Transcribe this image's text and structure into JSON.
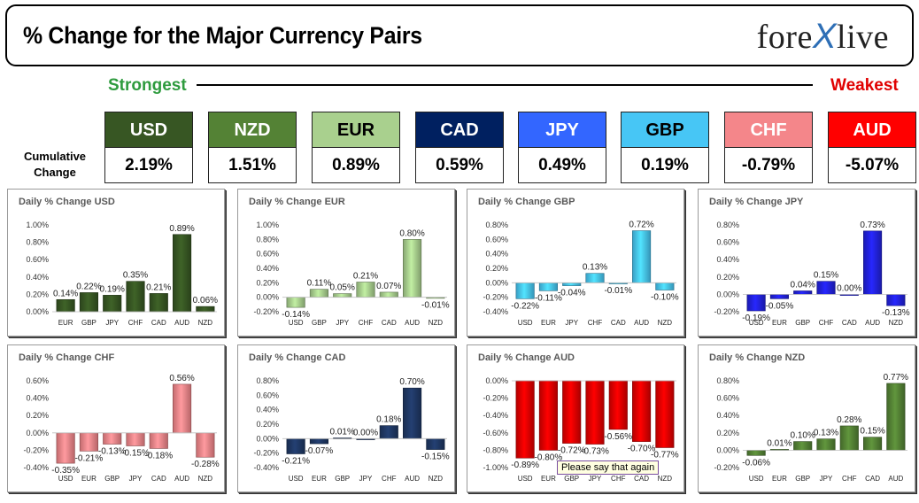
{
  "header": {
    "title": "% Change for the Major Currency Pairs",
    "logo_left": "fore",
    "logo_x": "X",
    "logo_right": "live"
  },
  "strength": {
    "strongest": "Strongest",
    "weakest": "Weakest",
    "cumulative_label": "Cumulative Change"
  },
  "currencies": [
    {
      "code": "USD",
      "value": "2.19%",
      "bg": "#375623",
      "fg": "#ffffff"
    },
    {
      "code": "NZD",
      "value": "1.51%",
      "bg": "#548235",
      "fg": "#ffffff"
    },
    {
      "code": "EUR",
      "value": "0.89%",
      "bg": "#a9d08e",
      "fg": "#000000"
    },
    {
      "code": "CAD",
      "value": "0.59%",
      "bg": "#002060",
      "fg": "#ffffff"
    },
    {
      "code": "JPY",
      "value": "0.49%",
      "bg": "#3366ff",
      "fg": "#ffffff"
    },
    {
      "code": "GBP",
      "value": "0.19%",
      "bg": "#47c6f5",
      "fg": "#000000"
    },
    {
      "code": "CHF",
      "value": "-0.79%",
      "bg": "#f4868a",
      "fg": "#ffffff"
    },
    {
      "code": "AUD",
      "value": "-5.07%",
      "bg": "#ff0000",
      "fg": "#ffffff"
    }
  ],
  "tooltip": "Please say that again",
  "chart_data": [
    {
      "type": "bar",
      "title": "Daily % Change USD",
      "color": "#375623",
      "categories": [
        "EUR",
        "GBP",
        "JPY",
        "CHF",
        "CAD",
        "AUD",
        "NZD"
      ],
      "values": [
        0.14,
        0.22,
        0.19,
        0.35,
        0.21,
        0.89,
        0.06
      ],
      "labels": [
        "0.14%",
        "0.22%",
        "0.19%",
        "0.35%",
        "0.21%",
        "0.89%",
        "0.06%"
      ],
      "ylim": [
        0,
        1.0
      ],
      "yticks": [
        0,
        0.2,
        0.4,
        0.6,
        0.8,
        1.0
      ],
      "ytick_labels": [
        "0.00%",
        "0.20%",
        "0.40%",
        "0.60%",
        "0.80%",
        "1.00%"
      ]
    },
    {
      "type": "bar",
      "title": "Daily % Change EUR",
      "color": "#a9d08e",
      "categories": [
        "USD",
        "GBP",
        "JPY",
        "CHF",
        "CAD",
        "AUD",
        "NZD"
      ],
      "values": [
        -0.14,
        0.11,
        0.05,
        0.21,
        0.07,
        0.8,
        -0.01
      ],
      "labels": [
        "-0.14%",
        "0.11%",
        "0.05%",
        "0.21%",
        "0.07%",
        "0.80%",
        "-0.01%"
      ],
      "ylim": [
        -0.2,
        1.0
      ],
      "yticks": [
        -0.2,
        0,
        0.2,
        0.4,
        0.6,
        0.8,
        1.0
      ],
      "ytick_labels": [
        "-0.20%",
        "0.00%",
        "0.20%",
        "0.40%",
        "0.60%",
        "0.80%",
        "1.00%"
      ]
    },
    {
      "type": "bar",
      "title": "Daily % Change GBP",
      "color": "#47c6f5",
      "categories": [
        "USD",
        "EUR",
        "JPY",
        "CHF",
        "CAD",
        "AUD",
        "NZD"
      ],
      "values": [
        -0.22,
        -0.11,
        -0.04,
        0.13,
        -0.01,
        0.72,
        -0.1
      ],
      "labels": [
        "-0.22%",
        "-0.11%",
        "-0.04%",
        "0.13%",
        "-0.01%",
        "0.72%",
        "-0.10%"
      ],
      "ylim": [
        -0.4,
        0.8
      ],
      "yticks": [
        -0.4,
        -0.2,
        0,
        0.2,
        0.4,
        0.6,
        0.8
      ],
      "ytick_labels": [
        "-0.40%",
        "-0.20%",
        "0.00%",
        "0.20%",
        "0.40%",
        "0.60%",
        "0.80%"
      ]
    },
    {
      "type": "bar",
      "title": "Daily % Change JPY",
      "color": "#2222dd",
      "categories": [
        "USD",
        "EUR",
        "GBP",
        "CHF",
        "CAD",
        "AUD",
        "NZD"
      ],
      "values": [
        -0.19,
        -0.05,
        0.04,
        0.15,
        0.0,
        0.73,
        -0.13
      ],
      "labels": [
        "-0.19%",
        "-0.05%",
        "0.04%",
        "0.15%",
        "0.00%",
        "0.73%",
        "-0.13%"
      ],
      "ylim": [
        -0.2,
        0.8
      ],
      "yticks": [
        -0.2,
        0,
        0.2,
        0.4,
        0.6,
        0.8
      ],
      "ytick_labels": [
        "-0.20%",
        "0.00%",
        "0.20%",
        "0.40%",
        "0.60%",
        "0.80%"
      ]
    },
    {
      "type": "bar",
      "title": "Daily % Change CHF",
      "color": "#f4868a",
      "categories": [
        "USD",
        "EUR",
        "GBP",
        "JPY",
        "CAD",
        "AUD",
        "NZD"
      ],
      "values": [
        -0.35,
        -0.21,
        -0.13,
        -0.15,
        -0.18,
        0.56,
        -0.28
      ],
      "labels": [
        "-0.35%",
        "-0.21%",
        "-0.13%",
        "-0.15%",
        "-0.18%",
        "0.56%",
        "-0.28%"
      ],
      "ylim": [
        -0.4,
        0.6
      ],
      "yticks": [
        -0.4,
        -0.2,
        0,
        0.2,
        0.4,
        0.6
      ],
      "ytick_labels": [
        "-0.40%",
        "-0.20%",
        "0.00%",
        "0.20%",
        "0.40%",
        "0.60%"
      ]
    },
    {
      "type": "bar",
      "title": "Daily % Change CAD",
      "color": "#1f3864",
      "categories": [
        "USD",
        "EUR",
        "GBP",
        "JPY",
        "CHF",
        "AUD",
        "NZD"
      ],
      "values": [
        -0.21,
        -0.07,
        0.01,
        0.0,
        0.18,
        0.7,
        -0.15
      ],
      "labels": [
        "-0.21%",
        "-0.07%",
        "0.01%",
        "0.00%",
        "0.18%",
        "0.70%",
        "-0.15%"
      ],
      "ylim": [
        -0.4,
        0.8
      ],
      "yticks": [
        -0.4,
        -0.2,
        0,
        0.2,
        0.4,
        0.6,
        0.8
      ],
      "ytick_labels": [
        "-0.40%",
        "-0.20%",
        "0.00%",
        "0.20%",
        "0.40%",
        "0.60%",
        "0.80%"
      ]
    },
    {
      "type": "bar",
      "title": "Daily % Change AUD",
      "color": "#e00000",
      "categories": [
        "USD",
        "EUR",
        "GBP",
        "JPY",
        "CHF",
        "CAD",
        "NZD"
      ],
      "values": [
        -0.89,
        -0.8,
        -0.72,
        -0.73,
        -0.56,
        -0.7,
        -0.77
      ],
      "labels": [
        "-0.89%",
        "-0.80%",
        "-0.72%",
        "-0.73%",
        "-0.56%",
        "-0.70%",
        "-0.77%"
      ],
      "ylim": [
        -1.0,
        0
      ],
      "yticks": [
        -1.0,
        -0.8,
        -0.6,
        -0.4,
        -0.2,
        0
      ],
      "ytick_labels": [
        "-1.00%",
        "-0.80%",
        "-0.60%",
        "-0.40%",
        "-0.20%",
        "0.00%"
      ]
    },
    {
      "type": "bar",
      "title": "Daily % Change NZD",
      "color": "#548235",
      "categories": [
        "USD",
        "EUR",
        "GBP",
        "JPY",
        "CHF",
        "CAD",
        "AUD"
      ],
      "values": [
        -0.06,
        0.01,
        0.1,
        0.13,
        0.28,
        0.15,
        0.77
      ],
      "labels": [
        "-0.06%",
        "0.01%",
        "0.10%",
        "0.13%",
        "0.28%",
        "0.15%",
        "0.77%"
      ],
      "ylim": [
        -0.2,
        0.8
      ],
      "yticks": [
        -0.2,
        0,
        0.2,
        0.4,
        0.6,
        0.8
      ],
      "ytick_labels": [
        "-0.20%",
        "0.00%",
        "0.20%",
        "0.40%",
        "0.60%",
        "0.80%"
      ]
    }
  ]
}
